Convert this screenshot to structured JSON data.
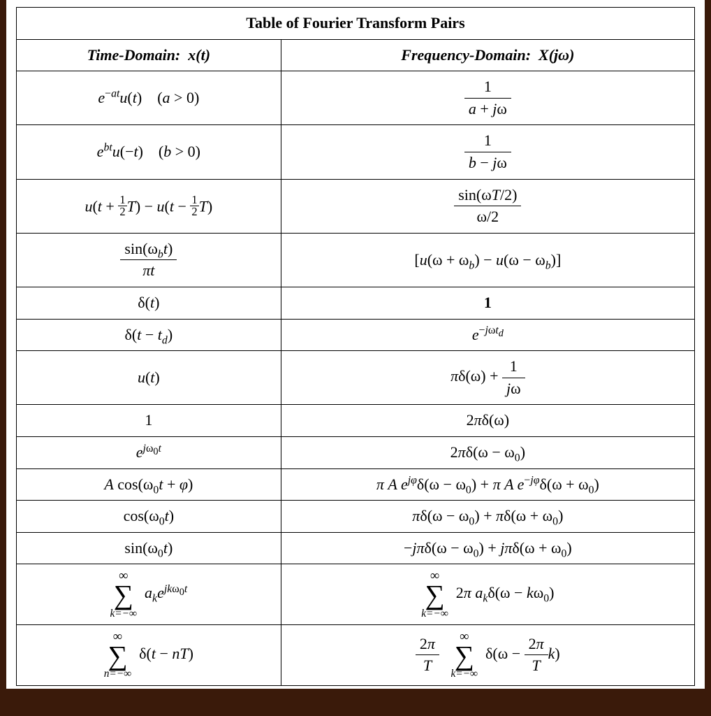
{
  "table": {
    "title": "Table of Fourier Transform Pairs",
    "columns": {
      "left": "Time-Domain: x(t)",
      "right": "Frequency-Domain: X(jω)"
    },
    "border_color": "#000000",
    "background_color": "#ffffff",
    "font_family": "Times New Roman",
    "title_fontsize_pt": 20,
    "header_fontsize_pt": 18,
    "body_fontsize_pt": 17,
    "column_widths_pct": [
      39,
      61
    ],
    "rows": [
      {
        "time": "e^{-at} u(t)   (a > 0)",
        "freq": "1 / (a + jω)"
      },
      {
        "time": "e^{bt} u(-t)   (b > 0)",
        "freq": "1 / (b − jω)"
      },
      {
        "time": "u(t + ½T) − u(t − ½T)",
        "freq": "sin(ωT/2) / (ω/2)"
      },
      {
        "time": "sin(ω_b t) / (π t)",
        "freq": "[u(ω + ω_b) − u(ω − ω_b)]"
      },
      {
        "time": "δ(t)",
        "freq": "1"
      },
      {
        "time": "δ(t − t_d)",
        "freq": "e^{-jω t_d}"
      },
      {
        "time": "u(t)",
        "freq": "π δ(ω) + 1/(jω)"
      },
      {
        "time": "1",
        "freq": "2π δ(ω)"
      },
      {
        "time": "e^{jω_0 t}",
        "freq": "2π δ(ω − ω_0)"
      },
      {
        "time": "A cos(ω_0 t + φ)",
        "freq": "π A e^{jφ} δ(ω − ω_0) + π A e^{−jφ} δ(ω + ω_0)"
      },
      {
        "time": "cos(ω_0 t)",
        "freq": "π δ(ω − ω_0) + π δ(ω + ω_0)"
      },
      {
        "time": "sin(ω_0 t)",
        "freq": "−jπ δ(ω − ω_0) + jπ δ(ω + ω_0)"
      },
      {
        "time": "Σ_{k=−∞}^{∞} a_k e^{j k ω_0 t}",
        "freq": "Σ_{k=−∞}^{∞} 2π a_k δ(ω − k ω_0)"
      },
      {
        "time": "Σ_{n=−∞}^{∞} δ(t − nT)",
        "freq": "(2π/T) Σ_{k=−∞}^{∞} δ(ω − (2π/T) k)"
      }
    ]
  }
}
